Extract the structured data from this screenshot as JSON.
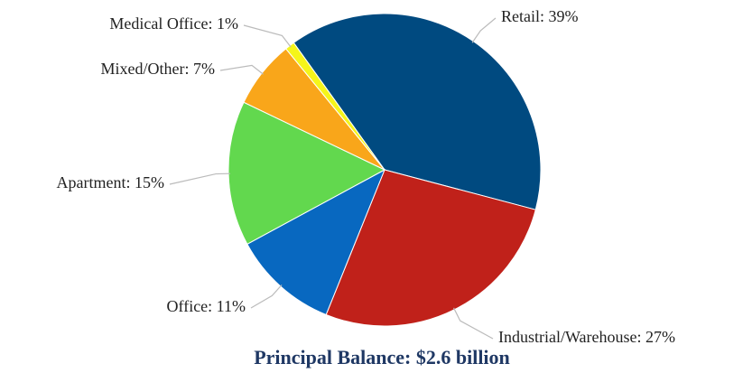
{
  "chart_data": {
    "type": "pie",
    "title": "Principal Balance: $2.6 billion",
    "categories": [
      "Retail",
      "Industrial/Warehouse",
      "Office",
      "Apartment",
      "Mixed/Other",
      "Medical Office"
    ],
    "values": [
      39,
      27,
      11,
      15,
      7,
      1
    ],
    "value_labels": [
      "Retail: 39%",
      "Industrial/Warehouse: 27%",
      "Office: 11%",
      "Apartment: 15%",
      "Mixed/Other: 7%",
      "Medical Office: 1%"
    ],
    "colors": [
      "#004a80",
      "#c0211a",
      "#0868c0",
      "#62d84e",
      "#f9a61a",
      "#f5f51a"
    ]
  }
}
